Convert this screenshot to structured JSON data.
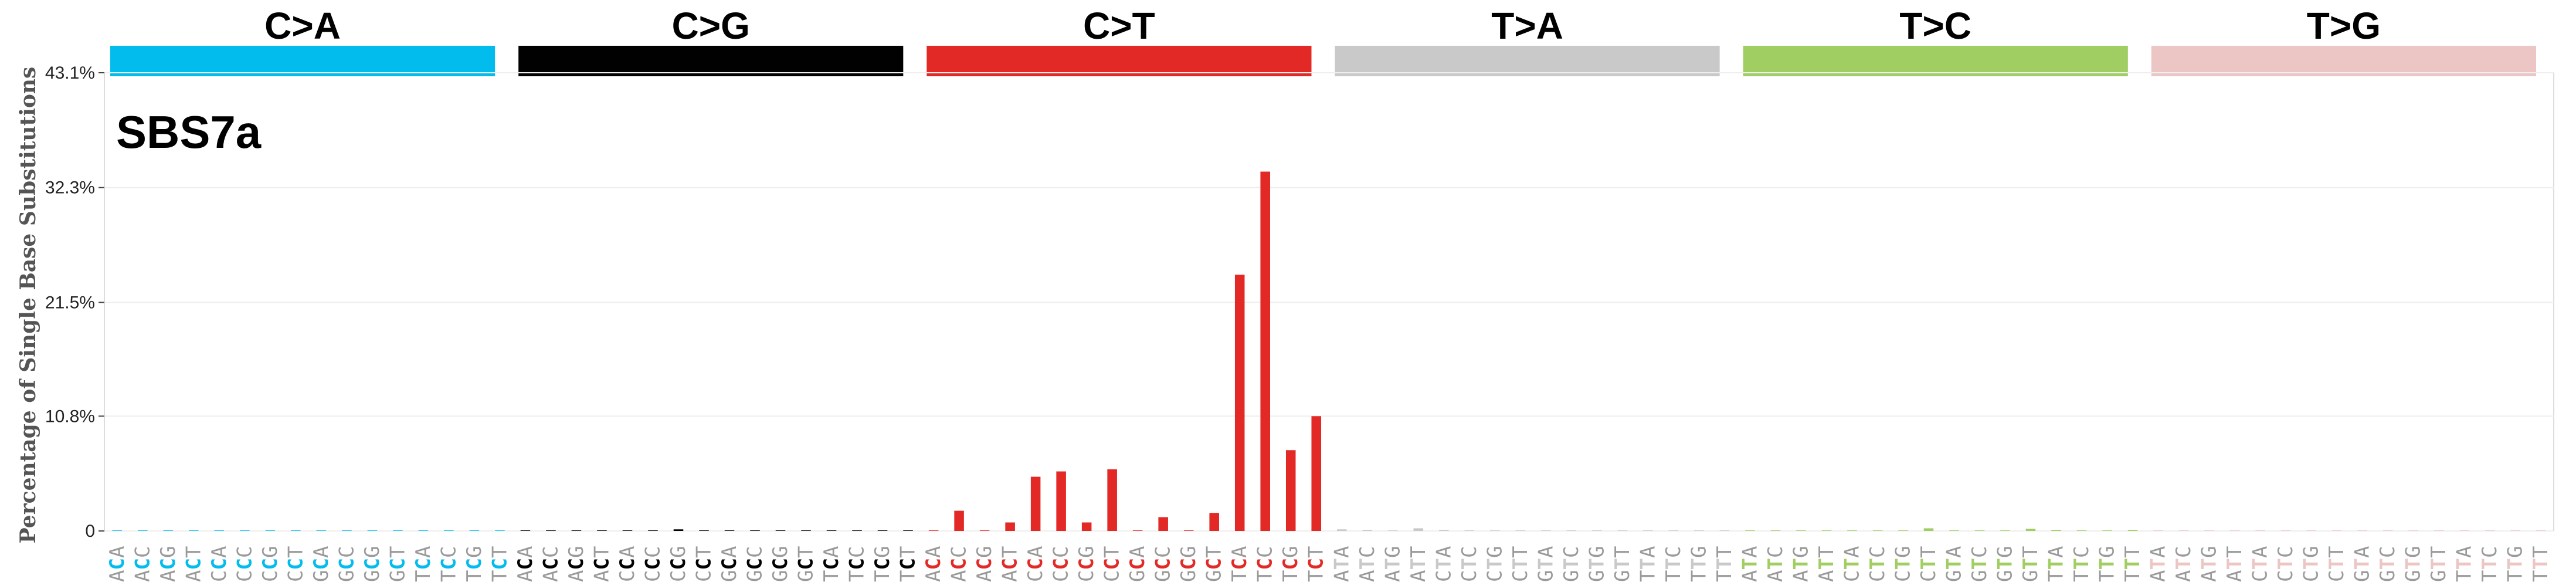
{
  "chart_data": {
    "type": "bar",
    "title": "SBS7a",
    "ylabel": "Percentage of Single Base Substitutions",
    "ylim": [
      0,
      43.1
    ],
    "yticks": [
      "0",
      "10.8%",
      "21.5%",
      "32.3%",
      "43.1%"
    ],
    "ytick_values": [
      0,
      10.8,
      21.5,
      32.3,
      43.1
    ],
    "grid": true,
    "mutation_types": [
      {
        "name": "C>A",
        "color": "#03BCEE"
      },
      {
        "name": "C>G",
        "color": "#010101"
      },
      {
        "name": "C>T",
        "color": "#E32926"
      },
      {
        "name": "T>A",
        "color": "#CAC9C9"
      },
      {
        "name": "T>C",
        "color": "#A1CE63"
      },
      {
        "name": "T>G",
        "color": "#EBC6C4"
      }
    ],
    "categories": [
      "ACA",
      "ACC",
      "ACG",
      "ACT",
      "CCA",
      "CCC",
      "CCG",
      "CCT",
      "GCA",
      "GCC",
      "GCG",
      "GCT",
      "TCA",
      "TCC",
      "TCG",
      "TCT",
      "ACA",
      "ACC",
      "ACG",
      "ACT",
      "CCA",
      "CCC",
      "CCG",
      "CCT",
      "GCA",
      "GCC",
      "GCG",
      "GCT",
      "TCA",
      "TCC",
      "TCG",
      "TCT",
      "ACA",
      "ACC",
      "ACG",
      "ACT",
      "CCA",
      "CCC",
      "CCG",
      "CCT",
      "GCA",
      "GCC",
      "GCG",
      "GCT",
      "TCA",
      "TCC",
      "TCG",
      "TCT",
      "ATA",
      "ATC",
      "ATG",
      "ATT",
      "CTA",
      "CTC",
      "CTG",
      "CTT",
      "GTA",
      "GTC",
      "GTG",
      "GTT",
      "TTA",
      "TTC",
      "TTG",
      "TTT",
      "ATA",
      "ATC",
      "ATG",
      "ATT",
      "CTA",
      "CTC",
      "CTG",
      "CTT",
      "GTA",
      "GTC",
      "GTG",
      "GTT",
      "TTA",
      "TTC",
      "TTG",
      "TTT",
      "ATA",
      "ATC",
      "ATG",
      "ATT",
      "CTA",
      "CTC",
      "CTG",
      "CTT",
      "GTA",
      "GTC",
      "GTG",
      "GTT",
      "TTA",
      "TTC",
      "TTG",
      "TTT"
    ],
    "values": [
      0.05,
      0.05,
      0.02,
      0.05,
      0.05,
      0.04,
      0.02,
      0.05,
      0.02,
      0.03,
      0.02,
      0.03,
      0.05,
      0.05,
      0.02,
      0.05,
      0.02,
      0.02,
      0.02,
      0.02,
      0.03,
      0.02,
      0.15,
      0.02,
      0.02,
      0.02,
      0.02,
      0.02,
      0.02,
      0.02,
      0.02,
      0.05,
      0.02,
      1.9,
      0.05,
      0.8,
      5.1,
      5.6,
      0.8,
      5.8,
      0.05,
      1.3,
      0.05,
      1.7,
      24.1,
      33.8,
      7.6,
      10.8,
      0.15,
      0.1,
      0.05,
      0.25,
      0.1,
      0.05,
      0.02,
      0.02,
      0.02,
      0.02,
      0.02,
      0.02,
      0.02,
      0.02,
      0.02,
      0.05,
      0.05,
      0.05,
      0.05,
      0.05,
      0.05,
      0.05,
      0.02,
      0.25,
      0.05,
      0.05,
      0.05,
      0.2,
      0.1,
      0.05,
      0.05,
      0.1,
      0.02,
      0.02,
      0.02,
      0.02,
      0.02,
      0.02,
      0.02,
      0.02,
      0.02,
      0.02,
      0.02,
      0.02,
      0.02,
      0.02,
      0.02,
      0.02
    ]
  }
}
